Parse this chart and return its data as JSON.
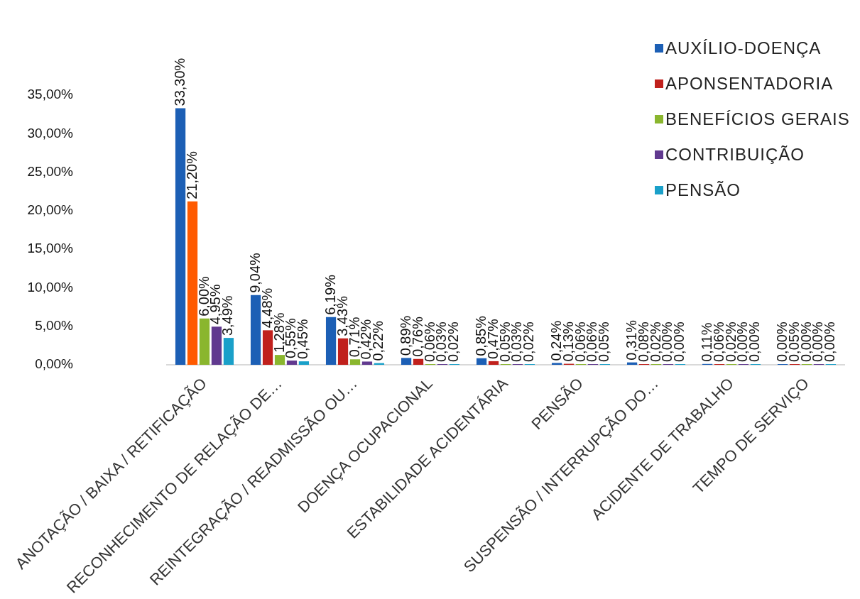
{
  "chart_data": {
    "type": "bar",
    "categories": [
      "ANOTAÇÃO / BAIXA / RETIFICAÇÃO",
      "RECONHECIMENTO DE RELAÇÃO DE…",
      "REINTEGRAÇÃO / READMISSÃO OU…",
      "DOENÇA OCUPACIONAL",
      "ESTABILIDADE ACIDENTÁRIA",
      "PENSÃO",
      "SUSPENSÃO / INTERRUPÇÃO DO…",
      "ACIDENTE DE TRABALHO",
      "TEMPO DE SERVIÇO"
    ],
    "series": [
      {
        "name": "AUXÍLIO-DOENÇA",
        "color": "#1c5fb5",
        "values": [
          33.3,
          9.04,
          6.19,
          0.89,
          0.85,
          0.24,
          0.31,
          0.11,
          0.0
        ],
        "value_labels": [
          "33,30%",
          "9,04%",
          "6,19%",
          "0,89%",
          "0,85%",
          "0,24%",
          "0,31%",
          "0,11%",
          "0,00%"
        ]
      },
      {
        "name": "APONSENTADORIA",
        "color": "#c0201c",
        "colors": [
          "#ff5a00",
          "#c0201c",
          "#c0201c",
          "#c0201c",
          "#c0201c",
          "#c0201c",
          "#c0201c",
          "#c0201c",
          "#c0201c"
        ],
        "values": [
          21.2,
          4.48,
          3.43,
          0.76,
          0.47,
          0.13,
          0.08,
          0.06,
          0.05
        ],
        "value_labels": [
          "21,20%",
          "4,48%",
          "3,43%",
          "0,76%",
          "0,47%",
          "0,13%",
          "0,08%",
          "0,06%",
          "0,05%"
        ]
      },
      {
        "name": "BENEFÍCIOS GERAIS",
        "color": "#8ab62e",
        "values": [
          6.0,
          1.28,
          0.71,
          0.06,
          0.05,
          0.06,
          0.02,
          0.02,
          0.0
        ],
        "value_labels": [
          "6,00%",
          "1,28%",
          "0,71%",
          "0,06%",
          "0,05%",
          "0,06%",
          "0,02%",
          "0,02%",
          "0,00%"
        ]
      },
      {
        "name": "CONTRIBUIÇÃO",
        "color": "#61398f",
        "values": [
          4.95,
          0.55,
          0.42,
          0.03,
          0.03,
          0.06,
          0.0,
          0.0,
          0.0
        ],
        "value_labels": [
          "4,95%",
          "0,55%",
          "0,42%",
          "0,03%",
          "0,03%",
          "0,06%",
          "0,00%",
          "0,00%",
          "0,00%"
        ]
      },
      {
        "name": "PENSÃO",
        "color": "#1aa0c9",
        "values": [
          3.49,
          0.45,
          0.22,
          0.02,
          0.02,
          0.05,
          0.0,
          0.0,
          0.0
        ],
        "value_labels": [
          "3,49%",
          "0,45%",
          "0,22%",
          "0,02%",
          "0,02%",
          "0,05%",
          "0,00%",
          "0,00%",
          "0,00%"
        ]
      }
    ],
    "ylim": [
      0,
      35
    ],
    "yticks": [
      {
        "value": 0,
        "label": "0,00%"
      },
      {
        "value": 5,
        "label": "5,00%"
      },
      {
        "value": 10,
        "label": "10,00%"
      },
      {
        "value": 15,
        "label": "15,00%"
      },
      {
        "value": 20,
        "label": "20,00%"
      },
      {
        "value": 25,
        "label": "25,00%"
      },
      {
        "value": 30,
        "label": "30,00%"
      },
      {
        "value": 35,
        "label": "35,00%"
      }
    ],
    "grid": false,
    "legend": "top right"
  }
}
